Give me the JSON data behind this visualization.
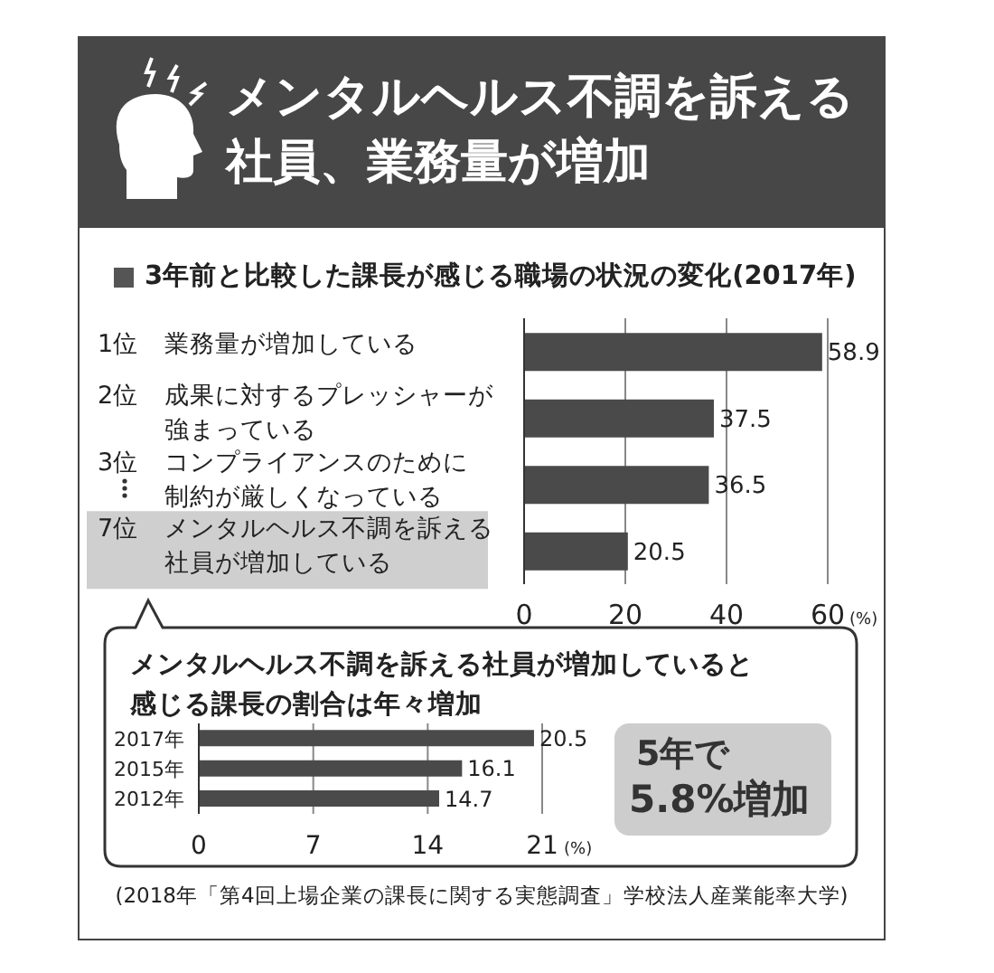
{
  "chart_data": [
    {
      "type": "bar",
      "orientation": "horizontal",
      "title": "メンタルヘルス不調を訴える社員、業務量が増加",
      "subtitle": "3年前と比較した課長が感じる職場の状況の変化(2017年)",
      "categories": [
        "1位 業務量が増加している",
        "2位 成果に対するプレッシャーが強まっている",
        "3位 コンプライアンスのために制約が厳しくなっている",
        "7位 メンタルヘルス不調を訴える社員が増加している"
      ],
      "values": [
        58.9,
        37.5,
        36.5,
        20.5
      ],
      "color": "#4a4a4a",
      "xlim": [
        0,
        60
      ],
      "xticks": [
        0,
        20,
        40,
        60
      ],
      "xlabel": "(%)",
      "grid": "x",
      "data_labels": true
    },
    {
      "type": "bar",
      "orientation": "horizontal",
      "title": "メンタルヘルス不調を訴える社員が増加していると感じる課長の割合は年々増加",
      "categories": [
        "2017年",
        "2015年",
        "2012年"
      ],
      "values": [
        20.5,
        16.1,
        14.7
      ],
      "color": "#4a4a4a",
      "xlim": [
        0,
        21
      ],
      "xticks": [
        0,
        7,
        14,
        21
      ],
      "xlabel": "(%)",
      "grid": "x",
      "data_labels": true,
      "annotations": [
        "5年で",
        "5.8%増加",
        "(2018年「第4回上場企業の課長に関する実態調査」学校法人産業能率大学)"
      ]
    }
  ]
}
